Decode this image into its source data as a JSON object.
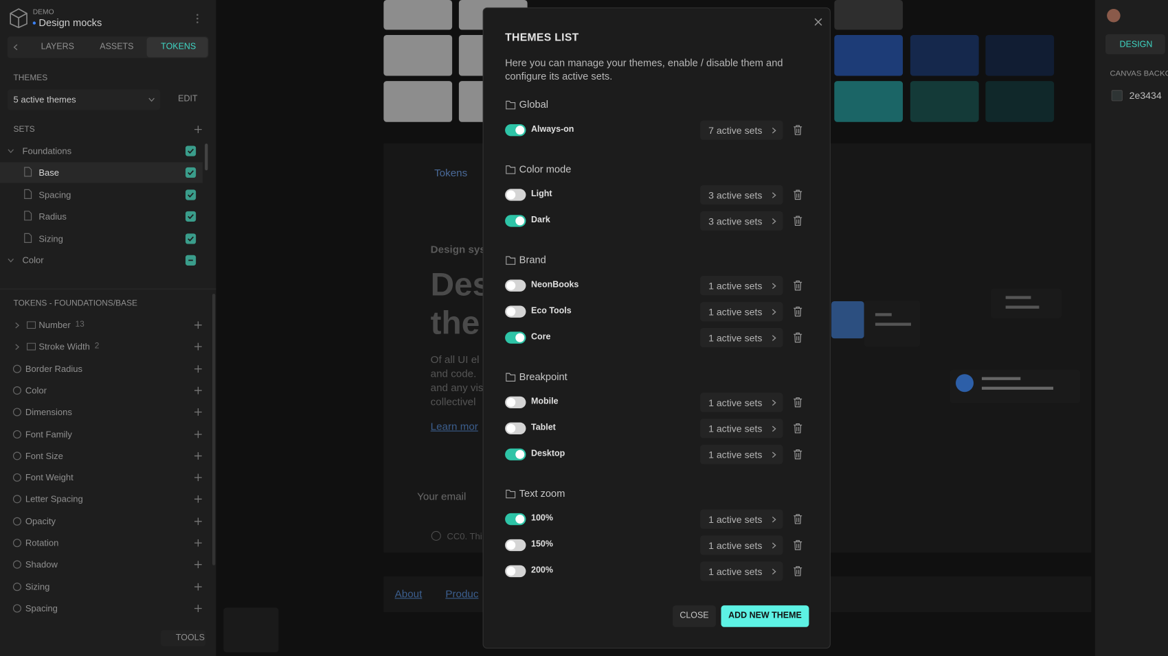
{
  "app": {
    "label": "DEMO",
    "project": "Design mocks"
  },
  "tabs": [
    "LAYERS",
    "ASSETS",
    "TOKENS"
  ],
  "themes": {
    "label": "THEMES",
    "selector": "5 active themes",
    "edit": "EDIT"
  },
  "sets": {
    "label": "SETS",
    "items": [
      {
        "name": "Foundations",
        "level": 0,
        "state": "checked"
      },
      {
        "name": "Base",
        "level": 1,
        "state": "checked",
        "selected": true
      },
      {
        "name": "Spacing",
        "level": 1,
        "state": "checked"
      },
      {
        "name": "Radius",
        "level": 1,
        "state": "checked"
      },
      {
        "name": "Sizing",
        "level": 1,
        "state": "checked"
      },
      {
        "name": "Color",
        "level": 0,
        "state": "mixed"
      }
    ]
  },
  "tokens": {
    "label": "TOKENS - FOUNDATIONS/BASE",
    "groups": [
      {
        "name": "Number",
        "count": "13",
        "expandable": true
      },
      {
        "name": "Stroke Width",
        "count": "2",
        "expandable": true
      },
      {
        "name": "Border Radius"
      },
      {
        "name": "Color"
      },
      {
        "name": "Dimensions"
      },
      {
        "name": "Font Family"
      },
      {
        "name": "Font Size"
      },
      {
        "name": "Font Weight"
      },
      {
        "name": "Letter Spacing"
      },
      {
        "name": "Opacity"
      },
      {
        "name": "Rotation"
      },
      {
        "name": "Shadow"
      },
      {
        "name": "Sizing"
      },
      {
        "name": "Spacing"
      }
    ]
  },
  "tools": "TOOLS",
  "canvas": {
    "tokens": "Tokens",
    "design_sys": "Design sys",
    "heading_1": "Des",
    "heading_2": "the",
    "body": [
      "Of all UI el",
      "and code.",
      "and any vis",
      "collectivel"
    ],
    "learn": "Learn mor",
    "email": "Your email",
    "license": "CC0. Thi",
    "about": "About",
    "product": "Produc"
  },
  "right": {
    "design": "DESIGN",
    "canvas_background": "CANVAS BACKG",
    "color": "2e3434"
  },
  "modal": {
    "title": "THEMES LIST",
    "description": "Here you can manage your themes, enable / disable them and configure its active sets.",
    "groups": [
      {
        "name": "Global",
        "themes": [
          {
            "name": "Always-on",
            "enabled": true,
            "sets": "7 active sets"
          }
        ]
      },
      {
        "name": "Color mode",
        "themes": [
          {
            "name": "Light",
            "enabled": false,
            "sets": "3 active sets"
          },
          {
            "name": "Dark",
            "enabled": true,
            "sets": "3 active sets"
          }
        ]
      },
      {
        "name": "Brand",
        "themes": [
          {
            "name": "NeonBooks",
            "enabled": false,
            "sets": "1 active sets"
          },
          {
            "name": "Eco Tools",
            "enabled": false,
            "sets": "1 active sets"
          },
          {
            "name": "Core",
            "enabled": true,
            "sets": "1 active sets"
          }
        ]
      },
      {
        "name": "Breakpoint",
        "themes": [
          {
            "name": "Mobile",
            "enabled": false,
            "sets": "1 active sets"
          },
          {
            "name": "Tablet",
            "enabled": false,
            "sets": "1 active sets"
          },
          {
            "name": "Desktop",
            "enabled": true,
            "sets": "1 active sets"
          }
        ]
      },
      {
        "name": "Text zoom",
        "themes": [
          {
            "name": "100%",
            "enabled": true,
            "sets": "1 active sets"
          },
          {
            "name": "150%",
            "enabled": false,
            "sets": "1 active sets"
          },
          {
            "name": "200%",
            "enabled": false,
            "sets": "1 active sets"
          }
        ]
      }
    ],
    "close": "CLOSE",
    "add": "ADD NEW THEME"
  }
}
